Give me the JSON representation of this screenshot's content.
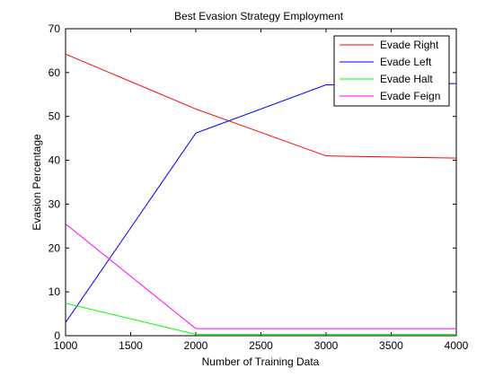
{
  "chart_data": {
    "type": "line",
    "title": "Best Evasion Strategy Employment",
    "xlabel": "Number of Training Data",
    "ylabel": "Evasion Percentage",
    "xlim": [
      1000,
      4000
    ],
    "ylim": [
      0,
      70
    ],
    "xticks": [
      1000,
      1500,
      2000,
      2500,
      3000,
      3500,
      4000
    ],
    "yticks": [
      0,
      10,
      20,
      30,
      40,
      50,
      60,
      70
    ],
    "grid": false,
    "legend_position": "top-right",
    "x": [
      1000,
      2000,
      3000,
      4000
    ],
    "series": [
      {
        "name": "Evade Right",
        "color": "#ff0000",
        "values": [
          64.2,
          51.7,
          41.0,
          40.5
        ]
      },
      {
        "name": "Evade Left",
        "color": "#0000ff",
        "values": [
          3.0,
          46.2,
          57.2,
          57.5
        ]
      },
      {
        "name": "Evade Halt",
        "color": "#00ff00",
        "values": [
          7.4,
          0.3,
          0.3,
          0.3
        ]
      },
      {
        "name": "Evade Feign",
        "color": "#ff00ff",
        "values": [
          25.5,
          1.6,
          1.6,
          1.6
        ]
      }
    ]
  }
}
